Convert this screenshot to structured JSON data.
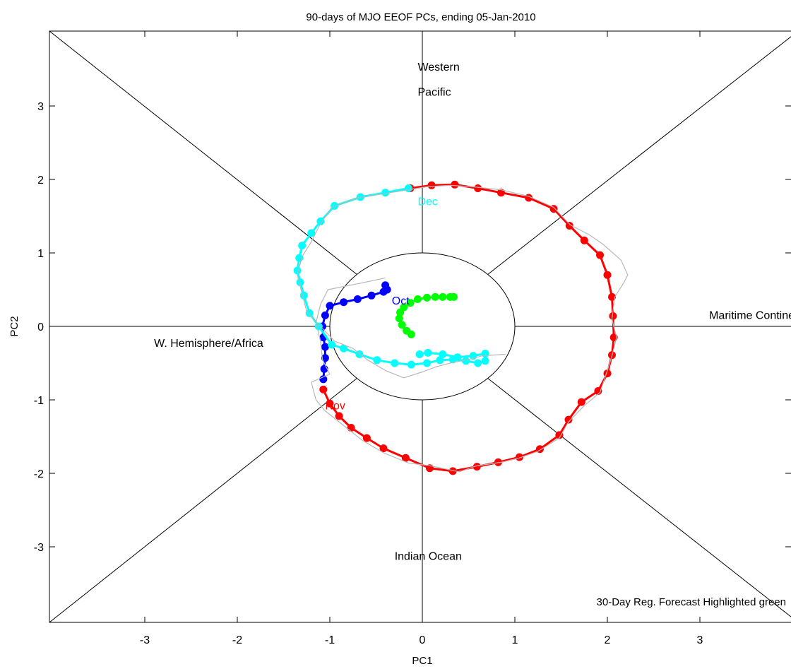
{
  "chart_data": {
    "type": "scatter",
    "title": "90-days of MJO EEOF PCs, ending 05-Jan-2010",
    "xlabel": "PC1",
    "ylabel": "PC2",
    "xlim": [
      -4,
      4
    ],
    "ylim": [
      -4,
      4
    ],
    "xticks": [
      -3,
      -2,
      -1,
      0,
      1,
      2,
      3
    ],
    "yticks": [
      -3,
      -2,
      -1,
      0,
      1,
      2,
      3
    ],
    "grid": false,
    "unit_circle_radius": 1,
    "region_labels": [
      {
        "name": "region-label-western",
        "text": "Western",
        "x": -0.05,
        "y": 3.48
      },
      {
        "name": "region-label-pacific",
        "text": "Pacific",
        "x": -0.05,
        "y": 3.14
      },
      {
        "name": "region-label-maritime",
        "text": "Maritime Continent",
        "x": 3.1,
        "y": 0.1
      },
      {
        "name": "region-label-whemisphere",
        "text": "W. Hemisphere/Africa",
        "x": -2.9,
        "y": -0.28
      },
      {
        "name": "region-label-indian",
        "text": "Indian Ocean",
        "x": -0.3,
        "y": -3.18
      }
    ],
    "month_labels": [
      {
        "name": "month-label-oct",
        "text": "Oct",
        "x": -0.33,
        "y": 0.3,
        "color": "#0000ff"
      },
      {
        "name": "month-label-nov",
        "text": "Nov",
        "x": -1.05,
        "y": -1.13,
        "color": "#ff0000"
      },
      {
        "name": "month-label-dec",
        "text": "Dec",
        "x": -0.05,
        "y": 1.65,
        "color": "#00ffff"
      }
    ],
    "annotation": "30-Day Reg. Forecast Highlighted green",
    "series": [
      {
        "id": "oct",
        "color": "#0000ff",
        "points": [
          [
            -0.4,
            0.56
          ],
          [
            -0.38,
            0.5
          ],
          [
            -0.42,
            0.47
          ],
          [
            -0.55,
            0.42
          ],
          [
            -0.7,
            0.37
          ],
          [
            -0.85,
            0.33
          ],
          [
            -1.0,
            0.28
          ],
          [
            -1.05,
            0.15
          ],
          [
            -1.08,
            0.0
          ],
          [
            -1.07,
            -0.15
          ],
          [
            -1.05,
            -0.28
          ],
          [
            -1.05,
            -0.43
          ],
          [
            -1.06,
            -0.58
          ],
          [
            -1.07,
            -0.72
          ]
        ]
      },
      {
        "id": "nov",
        "color": "#ff0000",
        "points": [
          [
            -1.07,
            -0.86
          ],
          [
            -1.0,
            -1.05
          ],
          [
            -0.9,
            -1.22
          ],
          [
            -0.77,
            -1.38
          ],
          [
            -0.6,
            -1.52
          ],
          [
            -0.42,
            -1.66
          ],
          [
            -0.18,
            -1.79
          ],
          [
            0.08,
            -1.93
          ],
          [
            0.33,
            -1.97
          ],
          [
            0.59,
            -1.91
          ],
          [
            0.82,
            -1.85
          ],
          [
            1.05,
            -1.78
          ],
          [
            1.27,
            -1.67
          ],
          [
            1.48,
            -1.48
          ],
          [
            1.58,
            -1.27
          ],
          [
            1.72,
            -1.03
          ],
          [
            1.9,
            -0.88
          ],
          [
            2.0,
            -0.64
          ],
          [
            2.05,
            -0.39
          ],
          [
            2.07,
            -0.15
          ],
          [
            2.06,
            0.14
          ],
          [
            2.05,
            0.4
          ],
          [
            2.0,
            0.7
          ],
          [
            1.92,
            0.97
          ],
          [
            1.75,
            1.17
          ],
          [
            1.59,
            1.37
          ],
          [
            1.42,
            1.6
          ],
          [
            1.15,
            1.75
          ],
          [
            0.85,
            1.82
          ],
          [
            0.6,
            1.88
          ],
          [
            0.35,
            1.93
          ],
          [
            0.1,
            1.92
          ],
          [
            -0.13,
            1.88
          ]
        ]
      },
      {
        "id": "dec",
        "color": "#00ffff",
        "points": [
          [
            -0.15,
            1.88
          ],
          [
            -0.4,
            1.82
          ],
          [
            -0.67,
            1.76
          ],
          [
            -0.95,
            1.64
          ],
          [
            -1.1,
            1.43
          ],
          [
            -1.2,
            1.27
          ],
          [
            -1.3,
            1.1
          ],
          [
            -1.33,
            0.93
          ],
          [
            -1.35,
            0.76
          ],
          [
            -1.32,
            0.6
          ],
          [
            -1.28,
            0.42
          ],
          [
            -1.22,
            0.18
          ],
          [
            -1.12,
            0.0
          ],
          [
            -0.98,
            -0.25
          ],
          [
            -0.85,
            -0.3
          ],
          [
            -0.68,
            -0.38
          ],
          [
            -0.49,
            -0.46
          ],
          [
            -0.3,
            -0.5
          ],
          [
            -0.12,
            -0.52
          ],
          [
            0.05,
            -0.5
          ],
          [
            0.19,
            -0.46
          ],
          [
            0.33,
            -0.45
          ],
          [
            0.47,
            -0.47
          ],
          [
            0.6,
            -0.5
          ],
          [
            0.68,
            -0.47
          ],
          [
            0.68,
            -0.37
          ],
          [
            0.55,
            -0.4
          ],
          [
            0.38,
            -0.42
          ],
          [
            0.22,
            -0.38
          ],
          [
            0.06,
            -0.36
          ],
          [
            -0.03,
            -0.38
          ]
        ]
      },
      {
        "id": "forecast",
        "color": "#00ff00",
        "points": [
          [
            -0.12,
            -0.11
          ],
          [
            -0.17,
            -0.06
          ],
          [
            -0.22,
            0.02
          ],
          [
            -0.25,
            0.11
          ],
          [
            -0.24,
            0.19
          ],
          [
            -0.2,
            0.26
          ],
          [
            -0.13,
            0.32
          ],
          [
            -0.05,
            0.37
          ],
          [
            0.05,
            0.39
          ],
          [
            0.14,
            0.4
          ],
          [
            0.22,
            0.4
          ],
          [
            0.3,
            0.4
          ],
          [
            0.34,
            0.4
          ]
        ]
      },
      {
        "id": "observed",
        "color": "#b8b8b8",
        "points": [
          [
            -0.4,
            0.66
          ],
          [
            -0.7,
            0.58
          ],
          [
            -1.02,
            0.5
          ],
          [
            -1.1,
            0.3
          ],
          [
            -1.15,
            0.05
          ],
          [
            -1.1,
            -0.2
          ],
          [
            -1.08,
            -0.45
          ],
          [
            -1.0,
            -0.65
          ],
          [
            -1.2,
            -0.76
          ],
          [
            -1.15,
            -1.0
          ],
          [
            -1.05,
            -1.15
          ],
          [
            -0.85,
            -1.35
          ],
          [
            -0.65,
            -1.55
          ],
          [
            -0.42,
            -1.72
          ],
          [
            -0.15,
            -1.86
          ],
          [
            0.1,
            -1.9
          ],
          [
            0.4,
            -1.98
          ],
          [
            0.58,
            -1.9
          ],
          [
            0.85,
            -1.85
          ],
          [
            1.05,
            -1.79
          ],
          [
            1.25,
            -1.7
          ],
          [
            1.48,
            -1.52
          ],
          [
            1.58,
            -1.3
          ],
          [
            1.75,
            -1.08
          ],
          [
            1.92,
            -0.9
          ],
          [
            2.0,
            -0.6
          ],
          [
            2.05,
            -0.4
          ],
          [
            2.1,
            -0.15
          ],
          [
            2.05,
            0.1
          ],
          [
            2.08,
            0.4
          ],
          [
            2.18,
            0.6
          ],
          [
            2.22,
            0.7
          ],
          [
            2.15,
            0.9
          ],
          [
            1.95,
            1.12
          ],
          [
            1.8,
            1.25
          ],
          [
            1.6,
            1.38
          ],
          [
            1.42,
            1.62
          ],
          [
            1.15,
            1.77
          ],
          [
            0.85,
            1.86
          ],
          [
            0.55,
            1.9
          ],
          [
            0.3,
            1.92
          ],
          [
            0.05,
            1.9
          ],
          [
            -0.15,
            1.86
          ],
          [
            -0.45,
            1.8
          ],
          [
            -0.7,
            1.75
          ],
          [
            -0.98,
            1.62
          ],
          [
            -1.1,
            1.4
          ],
          [
            -1.2,
            1.15
          ],
          [
            -1.3,
            0.95
          ],
          [
            -1.35,
            0.7
          ],
          [
            -1.3,
            0.45
          ],
          [
            -1.25,
            0.2
          ],
          [
            -1.1,
            0.0
          ],
          [
            -0.95,
            -0.2
          ],
          [
            -0.75,
            -0.3
          ],
          [
            -0.6,
            -0.45
          ],
          [
            -0.4,
            -0.6
          ],
          [
            -0.2,
            -0.7
          ],
          [
            0.0,
            -0.62
          ],
          [
            0.15,
            -0.55
          ],
          [
            0.3,
            -0.5
          ],
          [
            0.5,
            -0.45
          ],
          [
            0.65,
            -0.4
          ],
          [
            0.9,
            -0.38
          ]
        ]
      }
    ]
  }
}
